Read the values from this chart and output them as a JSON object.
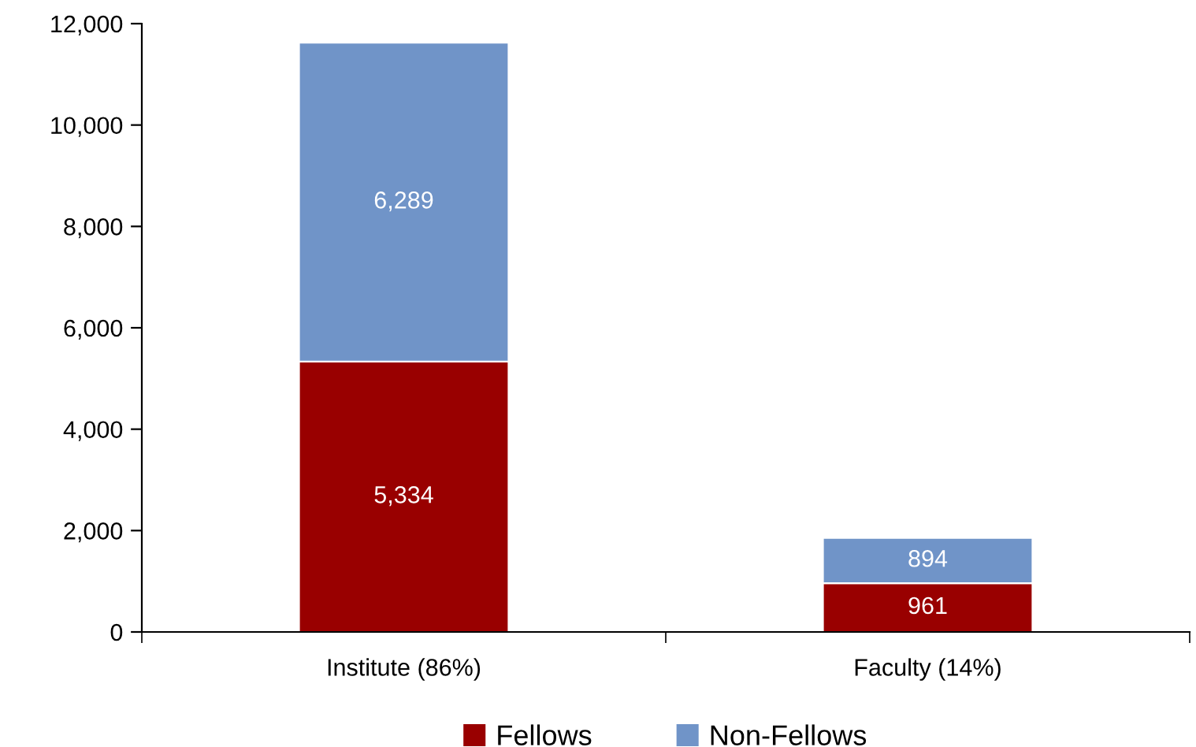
{
  "chart_data": {
    "type": "bar",
    "stacked": true,
    "categories": [
      "Institute (86%)",
      "Faculty (14%)"
    ],
    "series": [
      {
        "name": "Fellows",
        "color": "#990000",
        "values": [
          5334,
          961
        ],
        "value_labels": [
          "5,334",
          "961"
        ]
      },
      {
        "name": "Non-Fellows",
        "color": "#7094c8",
        "values": [
          6289,
          894
        ],
        "value_labels": [
          "6,289",
          "894"
        ]
      }
    ],
    "ylim": [
      0,
      12000
    ],
    "yticks": [
      {
        "value": 0,
        "label": "0"
      },
      {
        "value": 2000,
        "label": "2,000"
      },
      {
        "value": 4000,
        "label": "4,000"
      },
      {
        "value": 6000,
        "label": "6,000"
      },
      {
        "value": 8000,
        "label": "8,000"
      },
      {
        "value": 10000,
        "label": "10,000"
      },
      {
        "value": 12000,
        "label": "12,000"
      }
    ],
    "grid": false,
    "legend": "bottom"
  }
}
